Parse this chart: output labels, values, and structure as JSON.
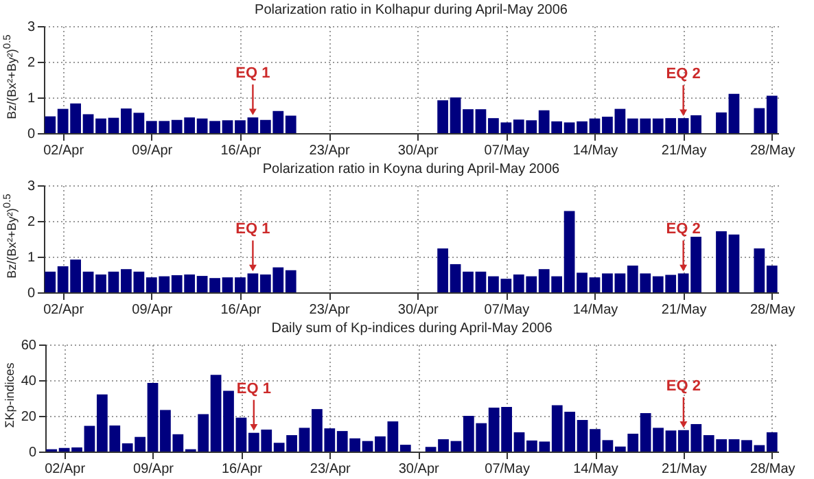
{
  "chart_data": [
    {
      "type": "bar",
      "title": "Polarization ratio in Kolhapur during April-May 2006",
      "ylabel": "Bz/(Bx²+By²)$^{0.5}$",
      "x": [
        "2006-04-01",
        "2006-04-02",
        "2006-04-03",
        "2006-04-04",
        "2006-04-05",
        "2006-04-06",
        "2006-04-07",
        "2006-04-08",
        "2006-04-09",
        "2006-04-10",
        "2006-04-11",
        "2006-04-12",
        "2006-04-13",
        "2006-04-14",
        "2006-04-15",
        "2006-04-16",
        "2006-04-17",
        "2006-04-18",
        "2006-04-19",
        "2006-04-20",
        "2006-05-02",
        "2006-05-03",
        "2006-05-04",
        "2006-05-05",
        "2006-05-06",
        "2006-05-07",
        "2006-05-08",
        "2006-05-09",
        "2006-05-10",
        "2006-05-11",
        "2006-05-12",
        "2006-05-13",
        "2006-05-14",
        "2006-05-15",
        "2006-05-16",
        "2006-05-17",
        "2006-05-18",
        "2006-05-19",
        "2006-05-20",
        "2006-05-21",
        "2006-05-22",
        "2006-05-24",
        "2006-05-25",
        "2006-05-27",
        "2006-05-28"
      ],
      "values": [
        0.47,
        0.68,
        0.83,
        0.53,
        0.41,
        0.43,
        0.69,
        0.57,
        0.34,
        0.34,
        0.37,
        0.44,
        0.41,
        0.34,
        0.36,
        0.36,
        0.44,
        0.37,
        0.62,
        0.49,
        0.92,
        1.0,
        0.67,
        0.67,
        0.42,
        0.3,
        0.38,
        0.36,
        0.64,
        0.33,
        0.3,
        0.33,
        0.41,
        0.46,
        0.68,
        0.41,
        0.41,
        0.41,
        0.42,
        0.42,
        0.5,
        0.58,
        1.1,
        0.7,
        1.05
      ],
      "color": "#00007f",
      "xlim": [
        "2006-03-31T12:00",
        "2006-05-28T12:00"
      ],
      "xticks": [
        {
          "value": "2006-04-02",
          "label": "02/Apr"
        },
        {
          "value": "2006-04-09",
          "label": "09/Apr"
        },
        {
          "value": "2006-04-16",
          "label": "16/Apr"
        },
        {
          "value": "2006-04-23",
          "label": "23/Apr"
        },
        {
          "value": "2006-04-30",
          "label": "30/Apr"
        },
        {
          "value": "2006-05-07",
          "label": "07/May"
        },
        {
          "value": "2006-05-14",
          "label": "14/May"
        },
        {
          "value": "2006-05-21",
          "label": "21/May"
        },
        {
          "value": "2006-05-28",
          "label": "28/May"
        }
      ],
      "ylim": [
        0,
        3
      ],
      "yticks": [
        0,
        1,
        2,
        3
      ],
      "grid": true,
      "annotations": [
        {
          "text": "EQ 1",
          "x": "2006-04-17",
          "y": 0.44
        },
        {
          "text": "EQ 2",
          "x": "2006-05-21",
          "y": 0.42
        }
      ]
    },
    {
      "type": "bar",
      "title": "Polarization ratio in Koyna during April-May 2006",
      "ylabel": "Bz/(Bx²+By²)$^{0.5}$",
      "x": [
        "2006-04-01",
        "2006-04-02",
        "2006-04-03",
        "2006-04-04",
        "2006-04-05",
        "2006-04-06",
        "2006-04-07",
        "2006-04-08",
        "2006-04-09",
        "2006-04-10",
        "2006-04-11",
        "2006-04-12",
        "2006-04-13",
        "2006-04-14",
        "2006-04-15",
        "2006-04-16",
        "2006-04-17",
        "2006-04-18",
        "2006-04-19",
        "2006-04-20",
        "2006-05-02",
        "2006-05-03",
        "2006-05-04",
        "2006-05-05",
        "2006-05-06",
        "2006-05-07",
        "2006-05-08",
        "2006-05-09",
        "2006-05-10",
        "2006-05-11",
        "2006-05-12",
        "2006-05-13",
        "2006-05-14",
        "2006-05-15",
        "2006-05-16",
        "2006-05-17",
        "2006-05-18",
        "2006-05-19",
        "2006-05-20",
        "2006-05-21",
        "2006-05-22",
        "2006-05-24",
        "2006-05-25",
        "2006-05-27",
        "2006-05-28"
      ],
      "values": [
        0.58,
        0.73,
        0.92,
        0.58,
        0.5,
        0.58,
        0.65,
        0.58,
        0.42,
        0.45,
        0.48,
        0.5,
        0.46,
        0.4,
        0.42,
        0.42,
        0.53,
        0.5,
        0.7,
        0.62,
        1.23,
        0.79,
        0.58,
        0.58,
        0.45,
        0.38,
        0.5,
        0.45,
        0.65,
        0.45,
        2.28,
        0.55,
        0.42,
        0.53,
        0.53,
        0.75,
        0.53,
        0.45,
        0.49,
        0.53,
        1.56,
        1.71,
        1.62,
        1.23,
        0.75
      ],
      "color": "#00007f",
      "xlim": [
        "2006-03-31T12:00",
        "2006-05-28T12:00"
      ],
      "xticks": [
        {
          "value": "2006-04-02",
          "label": "02/Apr"
        },
        {
          "value": "2006-04-09",
          "label": "09/Apr"
        },
        {
          "value": "2006-04-16",
          "label": "16/Apr"
        },
        {
          "value": "2006-04-23",
          "label": "23/Apr"
        },
        {
          "value": "2006-04-30",
          "label": "30/Apr"
        },
        {
          "value": "2006-05-07",
          "label": "07/May"
        },
        {
          "value": "2006-05-14",
          "label": "14/May"
        },
        {
          "value": "2006-05-21",
          "label": "21/May"
        },
        {
          "value": "2006-05-28",
          "label": "28/May"
        }
      ],
      "ylim": [
        0,
        3
      ],
      "yticks": [
        0,
        1,
        2,
        3
      ],
      "grid": true,
      "annotations": [
        {
          "text": "EQ 1",
          "x": "2006-04-17",
          "y": 0.53
        },
        {
          "text": "EQ 2",
          "x": "2006-05-21",
          "y": 0.53
        }
      ]
    },
    {
      "type": "bar",
      "title": "Daily sum of Kp-indices during April-May 2006",
      "ylabel": "ΣKp-indices",
      "x": [
        "2006-04-01",
        "2006-04-02",
        "2006-04-03",
        "2006-04-04",
        "2006-04-05",
        "2006-04-06",
        "2006-04-07",
        "2006-04-08",
        "2006-04-09",
        "2006-04-10",
        "2006-04-11",
        "2006-04-12",
        "2006-04-13",
        "2006-04-14",
        "2006-04-15",
        "2006-04-16",
        "2006-04-17",
        "2006-04-18",
        "2006-04-19",
        "2006-04-20",
        "2006-04-21",
        "2006-04-22",
        "2006-04-23",
        "2006-04-24",
        "2006-04-25",
        "2006-04-26",
        "2006-04-27",
        "2006-04-28",
        "2006-04-29",
        "2006-05-01",
        "2006-05-02",
        "2006-05-03",
        "2006-05-04",
        "2006-05-05",
        "2006-05-06",
        "2006-05-07",
        "2006-05-08",
        "2006-05-09",
        "2006-05-10",
        "2006-05-11",
        "2006-05-12",
        "2006-05-13",
        "2006-05-14",
        "2006-05-15",
        "2006-05-16",
        "2006-05-17",
        "2006-05-18",
        "2006-05-19",
        "2006-05-20",
        "2006-05-21",
        "2006-05-22",
        "2006-05-23",
        "2006-05-24",
        "2006-05-25",
        "2006-05-26",
        "2006-05-27",
        "2006-05-28"
      ],
      "values": [
        1.3,
        2,
        2.3,
        14.4,
        32,
        14.6,
        4.6,
        8.2,
        38.5,
        23.3,
        9.7,
        1.3,
        21,
        43,
        34,
        19,
        10.5,
        12.3,
        4.9,
        9.2,
        13.3,
        23.8,
        13,
        11.5,
        7.4,
        5.9,
        8.5,
        16.9,
        3.8,
        2.6,
        6.9,
        5.9,
        20,
        15.9,
        24.6,
        25,
        10.8,
        6.2,
        5.6,
        26,
        22.3,
        17.7,
        12.6,
        6.4,
        2.8,
        10,
        21.5,
        13.3,
        11.8,
        12,
        15.4,
        9.2,
        6.9,
        6.9,
        6.4,
        3.6,
        10.8
      ],
      "color": "#00007f",
      "xlim": [
        "2006-03-31T12:00",
        "2006-05-28T12:00"
      ],
      "xticks": [
        {
          "value": "2006-04-02",
          "label": "02/Apr"
        },
        {
          "value": "2006-04-09",
          "label": "09/Apr"
        },
        {
          "value": "2006-04-16",
          "label": "16/Apr"
        },
        {
          "value": "2006-04-23",
          "label": "23/Apr"
        },
        {
          "value": "2006-04-30",
          "label": "30/Apr"
        },
        {
          "value": "2006-05-07",
          "label": "07/May"
        },
        {
          "value": "2006-05-14",
          "label": "14/May"
        },
        {
          "value": "2006-05-21",
          "label": "21/May"
        },
        {
          "value": "2006-05-28",
          "label": "28/May"
        }
      ],
      "ylim": [
        0,
        60
      ],
      "yticks": [
        0,
        20,
        40,
        60
      ],
      "grid": true,
      "annotations": [
        {
          "text": "EQ 1",
          "x": "2006-04-17",
          "y": 10.5
        },
        {
          "text": "EQ 2",
          "x": "2006-05-21",
          "y": 12
        }
      ]
    }
  ]
}
